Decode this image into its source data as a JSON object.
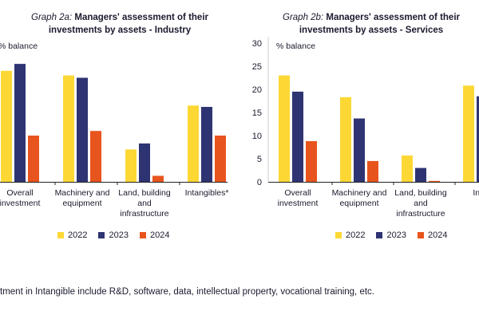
{
  "colors": {
    "2022": "#fdd835",
    "2023": "#2e3472",
    "2024": "#e8541e",
    "axis": "#222222"
  },
  "legend": [
    "2022",
    "2023",
    "2024"
  ],
  "footnote": "tment in Intangible include R&D, software, data, intellectual property, vocational training, etc.",
  "chart_data": [
    {
      "type": "bar",
      "title_lead": "Graph 2a:",
      "title": "Managers' assessment of their investments by assets - Industry",
      "ylabel": "% balance",
      "ylim": [
        0,
        30
      ],
      "yticks": [],
      "categories": [
        [
          "Overall",
          "investment"
        ],
        [
          "Machinery and",
          "equipment"
        ],
        [
          "Land, building",
          "and",
          "infrastructure"
        ],
        [
          "Intangibles*"
        ]
      ],
      "series": [
        {
          "name": "2022",
          "values": [
            24.0,
            23.0,
            7.0,
            16.5
          ]
        },
        {
          "name": "2023",
          "values": [
            25.5,
            22.5,
            8.3,
            16.2
          ]
        },
        {
          "name": "2024",
          "values": [
            10.0,
            11.0,
            1.3,
            10.0
          ]
        }
      ]
    },
    {
      "type": "bar",
      "title_lead": "Graph 2b:",
      "title": "Managers' assessment of their investments by assets - Services",
      "ylabel": "% balance",
      "ylim": [
        0,
        30
      ],
      "yticks": [
        "0",
        "5",
        "10",
        "15",
        "20",
        "25",
        "30"
      ],
      "categories": [
        [
          "Overall",
          "investment"
        ],
        [
          "Machinery and",
          "equipment"
        ],
        [
          "Land, building",
          "and",
          "infrastructure"
        ],
        [
          "Intan"
        ]
      ],
      "series": [
        {
          "name": "2022",
          "values": [
            23.0,
            18.3,
            5.7,
            20.8
          ]
        },
        {
          "name": "2023",
          "values": [
            19.5,
            13.7,
            3.0,
            18.5
          ]
        },
        {
          "name": "2024",
          "values": [
            8.8,
            4.5,
            0.2,
            null
          ]
        }
      ]
    }
  ]
}
